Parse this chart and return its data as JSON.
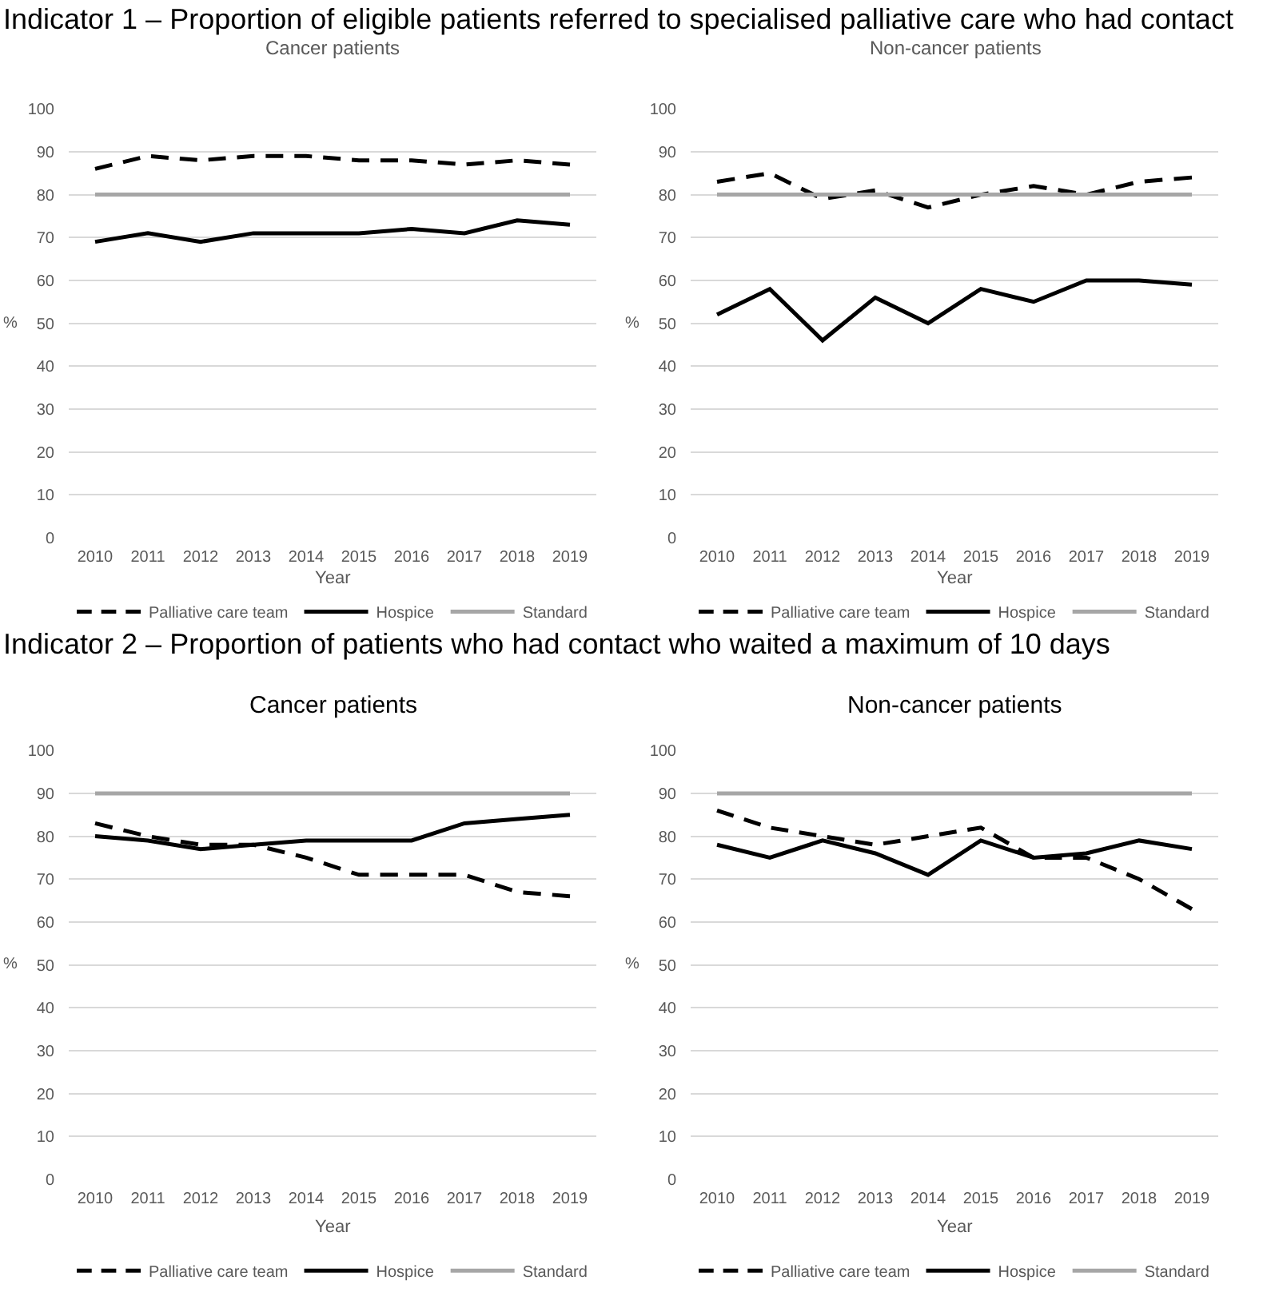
{
  "chart_data": [
    {
      "type": "line",
      "title": "Indicator 1 – Proportion of eligible patients referred to specialised palliative care who had contact",
      "subtitle": "Cancer patients",
      "xlabel": "Year",
      "ylabel": "%",
      "categories": [
        "2010",
        "2011",
        "2012",
        "2013",
        "2014",
        "2015",
        "2016",
        "2017",
        "2018",
        "2019"
      ],
      "series": [
        {
          "name": "Palliative care team",
          "color": "#000000",
          "line_style": "dashed",
          "values": [
            86,
            89,
            88,
            89,
            89,
            88,
            88,
            87,
            88,
            87
          ]
        },
        {
          "name": "Hospice",
          "color": "#000000",
          "line_style": "solid",
          "values": [
            69,
            71,
            69,
            71,
            71,
            71,
            72,
            71,
            74,
            73
          ]
        },
        {
          "name": "Standard",
          "color": "#a6a6a6",
          "line_style": "solid",
          "values": [
            80,
            80,
            80,
            80,
            80,
            80,
            80,
            80,
            80,
            80
          ]
        }
      ],
      "ylim": [
        0,
        100
      ],
      "yticks": [
        0,
        10,
        20,
        30,
        40,
        50,
        60,
        70,
        80,
        90,
        100
      ],
      "grid": "y",
      "legend": "bottom"
    },
    {
      "type": "line",
      "subtitle": "Non-cancer patients",
      "xlabel": "Year",
      "ylabel": "%",
      "categories": [
        "2010",
        "2011",
        "2012",
        "2013",
        "2014",
        "2015",
        "2016",
        "2017",
        "2018",
        "2019"
      ],
      "series": [
        {
          "name": "Palliative care team",
          "color": "#000000",
          "line_style": "dashed",
          "values": [
            83,
            85,
            79,
            81,
            77,
            80,
            82,
            80,
            83,
            84
          ]
        },
        {
          "name": "Hospice",
          "color": "#000000",
          "line_style": "solid",
          "values": [
            52,
            58,
            46,
            56,
            50,
            58,
            55,
            60,
            60,
            59
          ]
        },
        {
          "name": "Standard",
          "color": "#a6a6a6",
          "line_style": "solid",
          "values": [
            80,
            80,
            80,
            80,
            80,
            80,
            80,
            80,
            80,
            80
          ]
        }
      ],
      "ylim": [
        0,
        100
      ],
      "yticks": [
        0,
        10,
        20,
        30,
        40,
        50,
        60,
        70,
        80,
        90,
        100
      ],
      "grid": "y",
      "legend": "bottom"
    },
    {
      "type": "line",
      "title": "Indicator 2 – Proportion of patients who had contact who waited a maximum of 10 days",
      "subtitle": "Cancer patients",
      "xlabel": "Year",
      "ylabel": "%",
      "categories": [
        "2010",
        "2011",
        "2012",
        "2013",
        "2014",
        "2015",
        "2016",
        "2017",
        "2018",
        "2019"
      ],
      "series": [
        {
          "name": "Palliative care team",
          "color": "#000000",
          "line_style": "dashed",
          "values": [
            83,
            80,
            78,
            78,
            75,
            71,
            71,
            71,
            67,
            66
          ]
        },
        {
          "name": "Hospice",
          "color": "#000000",
          "line_style": "solid",
          "values": [
            80,
            79,
            77,
            78,
            79,
            79,
            79,
            83,
            84,
            85
          ]
        },
        {
          "name": "Standard",
          "color": "#a6a6a6",
          "line_style": "solid",
          "values": [
            90,
            90,
            90,
            90,
            90,
            90,
            90,
            90,
            90,
            90
          ]
        }
      ],
      "ylim": [
        0,
        100
      ],
      "yticks": [
        0,
        10,
        20,
        30,
        40,
        50,
        60,
        70,
        80,
        90,
        100
      ],
      "grid": "y",
      "legend": "bottom"
    },
    {
      "type": "line",
      "subtitle": "Non-cancer patients",
      "xlabel": "Year",
      "ylabel": "%",
      "categories": [
        "2010",
        "2011",
        "2012",
        "2013",
        "2014",
        "2015",
        "2016",
        "2017",
        "2018",
        "2019"
      ],
      "series": [
        {
          "name": "Palliative care team",
          "color": "#000000",
          "line_style": "dashed",
          "values": [
            86,
            82,
            80,
            78,
            80,
            82,
            75,
            75,
            70,
            63
          ]
        },
        {
          "name": "Hospice",
          "color": "#000000",
          "line_style": "solid",
          "values": [
            78,
            75,
            79,
            76,
            71,
            79,
            75,
            76,
            79,
            77
          ]
        },
        {
          "name": "Standard",
          "color": "#a6a6a6",
          "line_style": "solid",
          "values": [
            90,
            90,
            90,
            90,
            90,
            90,
            90,
            90,
            90,
            90
          ]
        }
      ],
      "ylim": [
        0,
        100
      ],
      "yticks": [
        0,
        10,
        20,
        30,
        40,
        50,
        60,
        70,
        80,
        90,
        100
      ],
      "grid": "y",
      "legend": "bottom"
    }
  ]
}
